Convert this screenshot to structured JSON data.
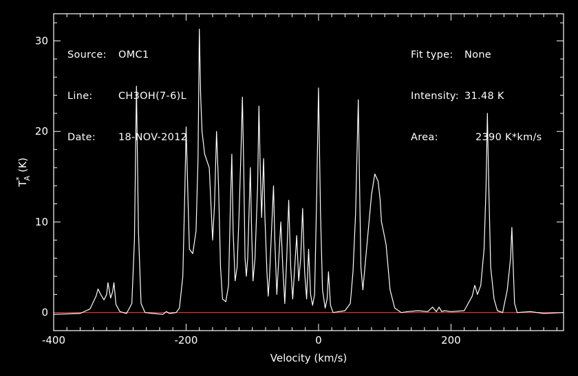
{
  "header_left": [
    {
      "key": "Source:",
      "value": "OMC1"
    },
    {
      "key": "Line:",
      "value": "CH3OH(7-6)L"
    },
    {
      "key": "Date:",
      "value": "18-NOV-2012"
    }
  ],
  "header_right": [
    {
      "key": "Fit type:",
      "value": "None"
    },
    {
      "key": "Intensity:",
      "value": "31.48 K"
    },
    {
      "key": "Area:",
      "value": "2390 K*km/s"
    }
  ],
  "colors": {
    "background": "#000000",
    "foreground": "#ffffff",
    "baseline": "#e0302a"
  },
  "chart_data": {
    "type": "line",
    "title": "",
    "xlabel": "Velocity (km/s)",
    "ylabel": "T*A (K)",
    "ylabel_main": "T",
    "ylabel_sup": "*",
    "ylabel_sub": "A",
    "ylabel_unit": " (K)",
    "xlim": [
      -400,
      370
    ],
    "ylim": [
      -2,
      33
    ],
    "xticks": [
      -400,
      -200,
      0,
      200
    ],
    "xtick_labels": [
      "-400",
      "-200",
      "0",
      "200"
    ],
    "yticks": [
      0,
      10,
      20,
      30
    ],
    "ytick_labels": [
      "0",
      "10",
      "20",
      "30"
    ],
    "baseline_y": 0,
    "grid": false,
    "series": [
      {
        "x": [
          -400,
          -360,
          -345,
          -336,
          -333,
          -329,
          -324,
          -320,
          -318,
          -314,
          -311,
          -309,
          -306,
          -300,
          -290,
          -282,
          -278,
          -275,
          -272,
          -268,
          -262,
          -250,
          -235,
          -230,
          -225,
          -215,
          -210,
          -205,
          -202,
          -200,
          -197,
          -195,
          -190,
          -185,
          -182,
          -180,
          -178,
          -176,
          -172,
          -165,
          -160,
          -157,
          -154,
          -151,
          -148,
          -145,
          -140,
          -136,
          -133,
          -131,
          -129,
          -126,
          -123,
          -120,
          -117,
          -115,
          -113,
          -111,
          -109,
          -107,
          -103,
          -101,
          -99,
          -96,
          -92,
          -90,
          -88,
          -86,
          -83,
          -81,
          -78,
          -76,
          -74,
          -71,
          -68,
          -66,
          -63,
          -60,
          -57,
          -54,
          -51,
          -48,
          -45,
          -42,
          -39,
          -36,
          -33,
          -30,
          -27,
          -24,
          -21,
          -18,
          -15,
          -12,
          -9,
          -6,
          -3,
          0,
          3,
          6,
          10,
          13,
          15,
          18,
          22,
          40,
          48,
          52,
          56,
          60,
          62,
          64,
          67,
          70,
          75,
          80,
          85,
          90,
          93,
          95,
          98,
          102,
          108,
          115,
          125,
          135,
          150,
          165,
          172,
          178,
          182,
          186,
          190,
          200,
          220,
          232,
          236,
          240,
          245,
          250,
          253,
          255,
          257,
          260,
          265,
          270,
          278,
          285,
          290,
          292,
          294,
          296,
          300,
          320,
          340,
          370
        ],
        "y": [
          -0.2,
          -0.1,
          0.4,
          1.8,
          2.6,
          2.0,
          1.4,
          2.0,
          3.3,
          1.6,
          2.3,
          3.3,
          0.9,
          0.1,
          -0.1,
          1.0,
          8.0,
          25.0,
          9.0,
          1.0,
          0.0,
          -0.1,
          -0.2,
          0.1,
          -0.1,
          0.0,
          0.5,
          4.0,
          13.0,
          20.5,
          12.0,
          7.0,
          6.5,
          9.0,
          17.0,
          31.3,
          24.0,
          20.0,
          17.5,
          16.0,
          8.0,
          12.0,
          20.0,
          14.0,
          5.0,
          1.5,
          1.2,
          3.0,
          12.0,
          17.5,
          9.0,
          3.5,
          5.0,
          11.0,
          18.0,
          23.8,
          16.0,
          6.0,
          4.0,
          6.0,
          16.0,
          9.0,
          3.5,
          6.0,
          14.0,
          22.8,
          16.0,
          10.5,
          17.0,
          10.5,
          4.5,
          1.8,
          4.0,
          9.0,
          14.0,
          8.0,
          2.0,
          6.0,
          10.0,
          5.0,
          1.0,
          6.0,
          12.4,
          5.0,
          1.5,
          5.0,
          8.5,
          3.5,
          6.0,
          11.5,
          4.5,
          1.5,
          7.0,
          2.0,
          0.8,
          2.0,
          12.0,
          24.8,
          11.0,
          2.5,
          0.5,
          1.5,
          4.5,
          0.8,
          0.0,
          0.2,
          1.0,
          4.5,
          11.0,
          23.5,
          14.0,
          5.0,
          2.5,
          5.0,
          9.0,
          13.0,
          15.3,
          14.5,
          12.5,
          10.0,
          9.0,
          7.5,
          2.5,
          0.5,
          0.0,
          0.1,
          0.2,
          0.1,
          0.6,
          0.1,
          0.6,
          0.1,
          0.2,
          0.1,
          0.2,
          1.8,
          3.0,
          2.0,
          3.0,
          7.0,
          14.0,
          22.0,
          14.0,
          5.0,
          1.5,
          0.2,
          0.0,
          2.5,
          6.0,
          9.4,
          5.0,
          1.0,
          0.0,
          0.1,
          -0.1,
          0.0
        ]
      }
    ]
  }
}
